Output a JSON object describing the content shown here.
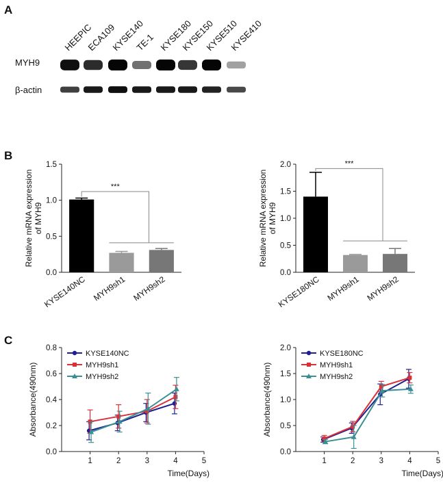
{
  "panels": {
    "a": "A",
    "b": "B",
    "c": "C"
  },
  "blot": {
    "lanes": [
      "HEEPIC",
      "ECA109",
      "KYSE140",
      "TE-1",
      "KYSE180",
      "KYSE150",
      "KYSE510",
      "KYSE410"
    ],
    "rows": [
      {
        "label": "MYH9",
        "intensity": [
          0.95,
          0.8,
          1.0,
          0.45,
          1.0,
          0.75,
          1.0,
          0.2
        ]
      },
      {
        "label": "β-actin",
        "intensity": [
          0.7,
          0.9,
          0.95,
          0.9,
          0.9,
          0.9,
          0.85,
          0.65
        ]
      }
    ]
  },
  "chart_data": [
    {
      "type": "bar",
      "categories": [
        "KYSE140NC",
        "MYH9sh1",
        "MYH9sh2"
      ],
      "values": [
        1.01,
        0.27,
        0.31
      ],
      "errors": [
        0.02,
        0.02,
        0.02
      ],
      "colors": [
        "#000000",
        "#9a9a9a",
        "#777777"
      ],
      "ylabel": "Relative mRNA expression of MYH9",
      "ylabel_lines": [
        "Relative mRNA expression",
        "of MYH9"
      ],
      "ylim": [
        0,
        1.5
      ],
      "yticks": [
        "0.0",
        "0.5",
        "1.0",
        "1.5"
      ],
      "significance": "***"
    },
    {
      "type": "bar",
      "categories": [
        "KYSE180NC",
        "MYH9sh1",
        "MYH9sh2"
      ],
      "values": [
        1.4,
        0.32,
        0.34
      ],
      "errors": [
        0.45,
        0.01,
        0.1
      ],
      "colors": [
        "#000000",
        "#9a9a9a",
        "#777777"
      ],
      "ylabel": "Relative mRNA expression of MYH9",
      "ylabel_lines": [
        "Relative mRNA expression",
        "of MYH9"
      ],
      "ylim": [
        0,
        2.0
      ],
      "yticks": [
        "0.0",
        "0.5",
        "1.0",
        "1.5",
        "2.0"
      ],
      "significance": "***"
    },
    {
      "type": "line",
      "x": [
        1,
        2,
        3,
        4
      ],
      "xlim": [
        0,
        5
      ],
      "xticks": [
        "1",
        "2",
        "3",
        "4",
        "5"
      ],
      "ylim": [
        0,
        0.8
      ],
      "yticks": [
        "0.0",
        "0.2",
        "0.4",
        "0.6",
        "0.8"
      ],
      "xlabel": "Time(Days)",
      "ylabel": "Absorbance(490nm)",
      "series": [
        {
          "name": "KYSE140NC",
          "color": "#1f1f8f",
          "values": [
            0.16,
            0.22,
            0.3,
            0.37
          ],
          "errors": [
            0.07,
            0.06,
            0.07,
            0.08
          ]
        },
        {
          "name": "MYH9sh1",
          "color": "#d8313a",
          "values": [
            0.23,
            0.27,
            0.31,
            0.42
          ],
          "errors": [
            0.09,
            0.09,
            0.09,
            0.09
          ]
        },
        {
          "name": "MYH9sh2",
          "color": "#3b8e93",
          "values": [
            0.15,
            0.23,
            0.33,
            0.48
          ],
          "errors": [
            0.08,
            0.08,
            0.12,
            0.09
          ]
        }
      ]
    },
    {
      "type": "line",
      "x": [
        1,
        2,
        3,
        4
      ],
      "xlim": [
        0,
        5
      ],
      "xticks": [
        "1",
        "2",
        "3",
        "4",
        "5"
      ],
      "ylim": [
        0,
        2.0
      ],
      "yticks": [
        "0.0",
        "0.5",
        "1.0",
        "1.5",
        "2.0"
      ],
      "xlabel": "Time(Days)",
      "ylabel": "Absorbance(490nm)",
      "series": [
        {
          "name": "KYSE180NC",
          "color": "#1f1f8f",
          "values": [
            0.23,
            0.45,
            1.1,
            1.4
          ],
          "errors": [
            0.05,
            0.1,
            0.2,
            0.18
          ]
        },
        {
          "name": "MYH9sh1",
          "color": "#d8313a",
          "values": [
            0.25,
            0.48,
            1.25,
            1.42
          ],
          "errors": [
            0.06,
            0.1,
            0.1,
            0.1
          ]
        },
        {
          "name": "MYH9sh2",
          "color": "#3b8e93",
          "values": [
            0.19,
            0.28,
            1.17,
            1.2
          ],
          "errors": [
            0.04,
            0.22,
            0.12,
            0.08
          ]
        }
      ]
    }
  ]
}
